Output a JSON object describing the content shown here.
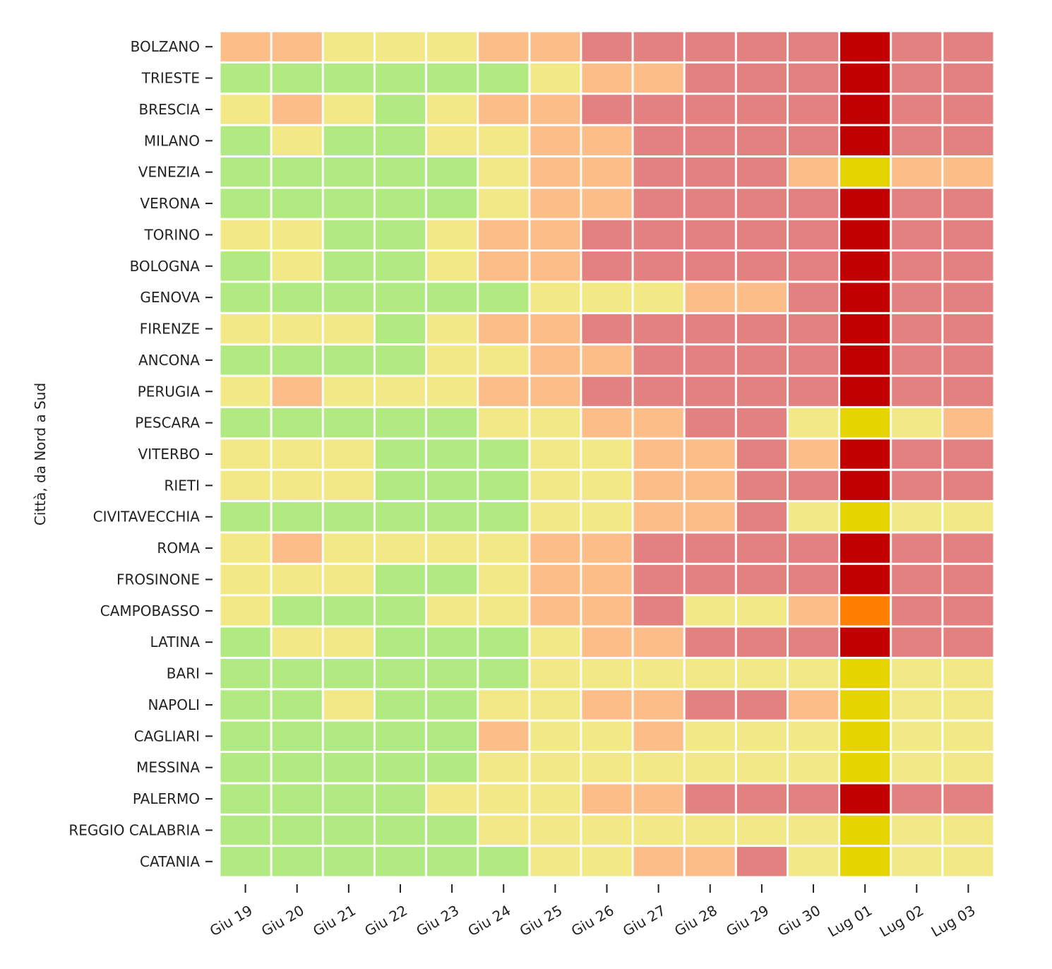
{
  "chart_data": {
    "type": "heatmap",
    "ylabel": "Città, da Nord a Sud",
    "xlabel": "",
    "x_categories": [
      "Giu 19",
      "Giu 20",
      "Giu 21",
      "Giu 22",
      "Giu 23",
      "Giu 24",
      "Giu 25",
      "Giu 26",
      "Giu 27",
      "Giu 28",
      "Giu 29",
      "Giu 30",
      "Lug 01",
      "Lug 02",
      "Lug 03"
    ],
    "y_categories": [
      "BOLZANO",
      "TRIESTE",
      "BRESCIA",
      "MILANO",
      "VENEZIA",
      "VERONA",
      "TORINO",
      "BOLOGNA",
      "GENOVA",
      "FIRENZE",
      "ANCONA",
      "PERUGIA",
      "PESCARA",
      "VITERBO",
      "RIETI",
      "CIVITAVECCHIA",
      "ROMA",
      "FROSINONE",
      "CAMPOBASSO",
      "LATINA",
      "BARI",
      "NAPOLI",
      "CAGLIARI",
      "MESSINA",
      "PALERMO",
      "REGGIO CALABRIA",
      "CATANIA"
    ],
    "level_colors": {
      "0": "#b1ea80",
      "1": "#f2e986",
      "2": "#fdbd88",
      "3": "#e38080",
      "4": "#c00000",
      "5": "#e6d400",
      "6": "#ff8000"
    },
    "values": [
      [
        2,
        2,
        1,
        1,
        1,
        2,
        2,
        3,
        3,
        3,
        3,
        3,
        4,
        3,
        3
      ],
      [
        0,
        0,
        0,
        0,
        0,
        0,
        1,
        2,
        2,
        3,
        3,
        3,
        4,
        3,
        3
      ],
      [
        1,
        2,
        1,
        0,
        1,
        2,
        2,
        3,
        3,
        3,
        3,
        3,
        4,
        3,
        3
      ],
      [
        0,
        1,
        0,
        0,
        1,
        1,
        2,
        2,
        3,
        3,
        3,
        3,
        4,
        3,
        3
      ],
      [
        0,
        0,
        0,
        0,
        0,
        1,
        2,
        2,
        3,
        3,
        3,
        2,
        5,
        2,
        2
      ],
      [
        0,
        0,
        0,
        0,
        0,
        1,
        2,
        2,
        3,
        3,
        3,
        3,
        4,
        3,
        3
      ],
      [
        1,
        1,
        0,
        0,
        1,
        2,
        2,
        3,
        3,
        3,
        3,
        3,
        4,
        3,
        3
      ],
      [
        0,
        1,
        0,
        0,
        1,
        2,
        2,
        3,
        3,
        3,
        3,
        3,
        4,
        3,
        3
      ],
      [
        0,
        0,
        0,
        0,
        0,
        0,
        1,
        1,
        1,
        2,
        2,
        3,
        4,
        3,
        3
      ],
      [
        1,
        1,
        1,
        0,
        1,
        2,
        2,
        3,
        3,
        3,
        3,
        3,
        4,
        3,
        3
      ],
      [
        0,
        0,
        0,
        0,
        1,
        1,
        2,
        2,
        3,
        3,
        3,
        3,
        4,
        3,
        3
      ],
      [
        1,
        2,
        1,
        1,
        1,
        2,
        2,
        3,
        3,
        3,
        3,
        3,
        4,
        3,
        3
      ],
      [
        0,
        0,
        0,
        0,
        0,
        1,
        1,
        2,
        2,
        3,
        3,
        1,
        5,
        1,
        2
      ],
      [
        1,
        1,
        1,
        0,
        0,
        0,
        1,
        1,
        2,
        2,
        3,
        2,
        4,
        3,
        3
      ],
      [
        1,
        1,
        1,
        0,
        0,
        0,
        1,
        1,
        2,
        2,
        3,
        3,
        4,
        3,
        3
      ],
      [
        0,
        0,
        0,
        0,
        0,
        0,
        1,
        1,
        2,
        2,
        3,
        1,
        5,
        1,
        1
      ],
      [
        1,
        2,
        1,
        1,
        1,
        1,
        2,
        2,
        3,
        3,
        3,
        3,
        4,
        3,
        3
      ],
      [
        1,
        1,
        1,
        0,
        0,
        1,
        2,
        2,
        3,
        3,
        3,
        3,
        4,
        3,
        3
      ],
      [
        1,
        0,
        0,
        0,
        1,
        1,
        2,
        2,
        3,
        1,
        1,
        2,
        6,
        3,
        3
      ],
      [
        0,
        1,
        1,
        0,
        0,
        0,
        1,
        2,
        2,
        3,
        3,
        3,
        4,
        3,
        3
      ],
      [
        0,
        0,
        0,
        0,
        0,
        0,
        1,
        1,
        1,
        1,
        1,
        1,
        5,
        1,
        1
      ],
      [
        0,
        0,
        1,
        0,
        0,
        1,
        1,
        2,
        2,
        3,
        3,
        2,
        5,
        1,
        1
      ],
      [
        0,
        0,
        0,
        0,
        0,
        2,
        1,
        1,
        2,
        1,
        1,
        1,
        5,
        1,
        1
      ],
      [
        0,
        0,
        0,
        0,
        0,
        1,
        1,
        1,
        1,
        1,
        1,
        1,
        5,
        1,
        1
      ],
      [
        0,
        0,
        0,
        0,
        1,
        1,
        1,
        2,
        2,
        3,
        3,
        3,
        4,
        3,
        3
      ],
      [
        0,
        0,
        0,
        0,
        0,
        1,
        1,
        1,
        1,
        1,
        1,
        1,
        5,
        1,
        1
      ],
      [
        0,
        0,
        0,
        0,
        0,
        0,
        1,
        1,
        2,
        2,
        3,
        1,
        5,
        1,
        1
      ]
    ]
  }
}
